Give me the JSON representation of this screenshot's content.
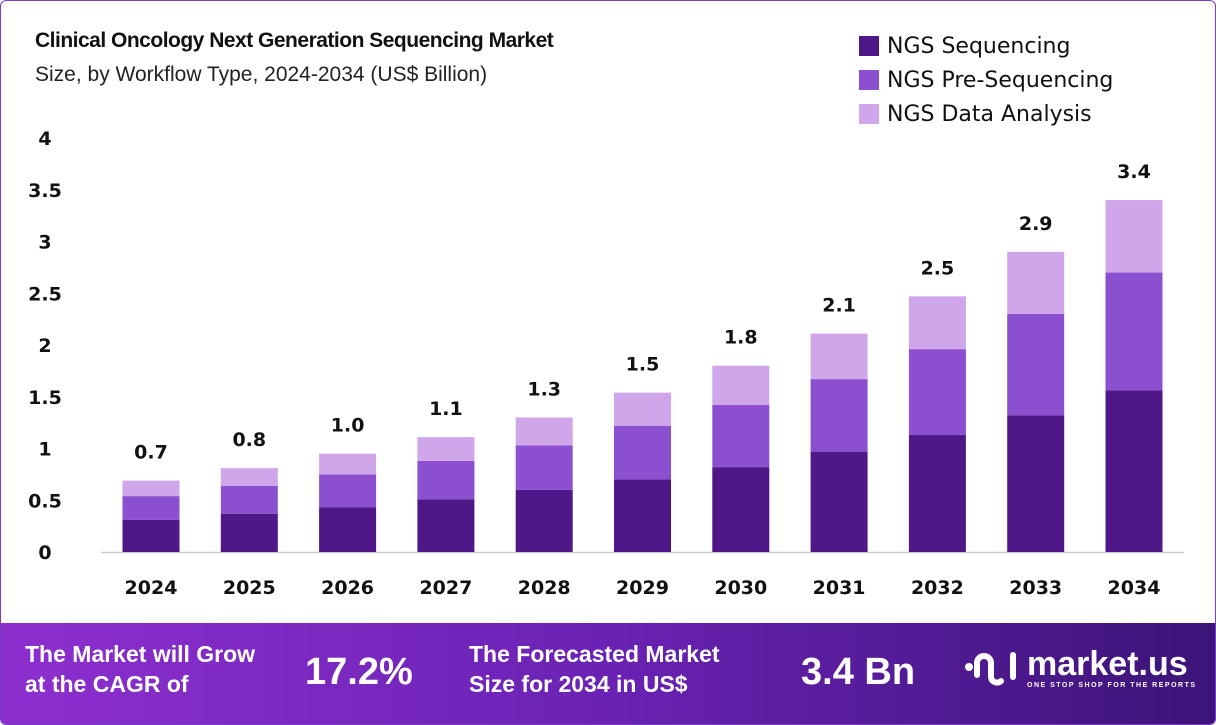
{
  "chart_data": {
    "type": "bar",
    "stacked": true,
    "title": "Clinical Oncology Next Generation Sequencing Market",
    "subtitle": "Size, by Workflow Type, 2024-2034 (US$ Billion)",
    "categories": [
      "2024",
      "2025",
      "2026",
      "2027",
      "2028",
      "2029",
      "2030",
      "2031",
      "2032",
      "2033",
      "2034"
    ],
    "series": [
      {
        "name": "NGS Sequencing",
        "color": "#4f1787",
        "values": [
          0.31,
          0.37,
          0.43,
          0.51,
          0.6,
          0.7,
          0.82,
          0.97,
          1.13,
          1.32,
          1.56
        ]
      },
      {
        "name": "NGS Pre-Sequencing",
        "color": "#8b4fd0",
        "values": [
          0.23,
          0.27,
          0.32,
          0.37,
          0.43,
          0.52,
          0.6,
          0.7,
          0.83,
          0.98,
          1.14
        ]
      },
      {
        "name": "NGS Data Analysis",
        "color": "#d0a6ea",
        "values": [
          0.15,
          0.17,
          0.2,
          0.23,
          0.27,
          0.32,
          0.38,
          0.44,
          0.51,
          0.6,
          0.7
        ]
      }
    ],
    "totals_labels": [
      "0.7",
      "0.8",
      "1.0",
      "1.1",
      "1.3",
      "1.5",
      "1.8",
      "2.1",
      "2.5",
      "2.9",
      "3.4"
    ],
    "yticks": [
      "0",
      "0.5",
      "1",
      "1.5",
      "2",
      "2.5",
      "3",
      "3.5",
      "4"
    ],
    "ylim": [
      0,
      4
    ],
    "grid": false,
    "legend": "top-right"
  },
  "footer": {
    "cagr_text": "The Market will Grow at the CAGR of",
    "cagr_line1": "The Market will Grow",
    "cagr_line2": "at the CAGR of",
    "cagr_value": "17.2%",
    "forecast_line1": "The Forecasted Market",
    "forecast_line2": "Size for 2034 in US$",
    "forecast_value": "3.4 Bn",
    "logo_name": "market.us",
    "logo_tagline": "ONE STOP SHOP FOR THE REPORTS"
  }
}
